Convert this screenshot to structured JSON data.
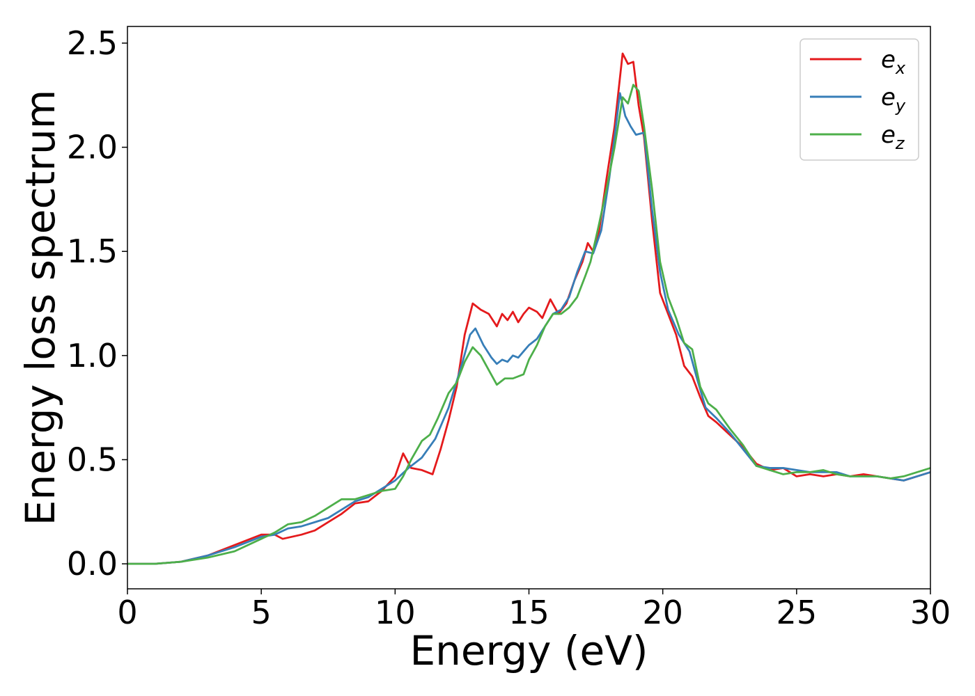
{
  "chart_data": {
    "type": "line",
    "title": "",
    "xlabel": "Energy (eV)",
    "ylabel": "Energy loss spectrum",
    "xlim": [
      0,
      30
    ],
    "ylim": [
      -0.12,
      2.58
    ],
    "xticks": [
      0,
      5,
      10,
      15,
      20,
      25,
      30
    ],
    "xtick_labels": [
      "0",
      "5",
      "10",
      "15",
      "20",
      "25",
      "30"
    ],
    "yticks": [
      0.0,
      0.5,
      1.0,
      1.5,
      2.0,
      2.5
    ],
    "ytick_labels": [
      "0.0",
      "0.5",
      "1.0",
      "1.5",
      "2.0",
      "2.5"
    ],
    "grid": false,
    "legend_position": "top-right",
    "series": [
      {
        "name": "e_x",
        "label_base": "e",
        "label_sub": "x",
        "color": "#e41a1c",
        "points": [
          [
            0,
            0.0
          ],
          [
            1,
            0.0
          ],
          [
            2,
            0.01
          ],
          [
            3,
            0.04
          ],
          [
            4,
            0.09
          ],
          [
            5,
            0.14
          ],
          [
            5.5,
            0.14
          ],
          [
            5.8,
            0.12
          ],
          [
            6.5,
            0.14
          ],
          [
            7,
            0.16
          ],
          [
            7.5,
            0.2
          ],
          [
            8,
            0.24
          ],
          [
            8.5,
            0.29
          ],
          [
            9,
            0.3
          ],
          [
            9.5,
            0.35
          ],
          [
            10,
            0.42
          ],
          [
            10.3,
            0.53
          ],
          [
            10.6,
            0.46
          ],
          [
            11,
            0.45
          ],
          [
            11.4,
            0.43
          ],
          [
            11.7,
            0.55
          ],
          [
            12,
            0.69
          ],
          [
            12.3,
            0.85
          ],
          [
            12.6,
            1.1
          ],
          [
            12.9,
            1.25
          ],
          [
            13.2,
            1.22
          ],
          [
            13.5,
            1.2
          ],
          [
            13.8,
            1.14
          ],
          [
            14,
            1.2
          ],
          [
            14.2,
            1.17
          ],
          [
            14.4,
            1.21
          ],
          [
            14.6,
            1.16
          ],
          [
            14.8,
            1.2
          ],
          [
            15,
            1.23
          ],
          [
            15.3,
            1.21
          ],
          [
            15.5,
            1.18
          ],
          [
            15.8,
            1.27
          ],
          [
            16.1,
            1.2
          ],
          [
            16.4,
            1.25
          ],
          [
            16.7,
            1.36
          ],
          [
            17,
            1.45
          ],
          [
            17.2,
            1.54
          ],
          [
            17.4,
            1.5
          ],
          [
            17.6,
            1.58
          ],
          [
            17.9,
            1.85
          ],
          [
            18.2,
            2.1
          ],
          [
            18.5,
            2.45
          ],
          [
            18.7,
            2.4
          ],
          [
            18.9,
            2.41
          ],
          [
            19.1,
            2.2
          ],
          [
            19.3,
            2.05
          ],
          [
            19.6,
            1.65
          ],
          [
            19.9,
            1.3
          ],
          [
            20.2,
            1.2
          ],
          [
            20.5,
            1.1
          ],
          [
            20.8,
            0.95
          ],
          [
            21.1,
            0.9
          ],
          [
            21.4,
            0.8
          ],
          [
            21.7,
            0.71
          ],
          [
            22,
            0.68
          ],
          [
            22.5,
            0.62
          ],
          [
            23,
            0.56
          ],
          [
            23.5,
            0.48
          ],
          [
            24,
            0.45
          ],
          [
            24.5,
            0.46
          ],
          [
            25,
            0.42
          ],
          [
            25.5,
            0.43
          ],
          [
            26,
            0.42
          ],
          [
            26.5,
            0.43
          ],
          [
            27,
            0.42
          ],
          [
            27.5,
            0.43
          ],
          [
            28,
            0.42
          ],
          [
            28.5,
            0.41
          ],
          [
            29,
            0.4
          ],
          [
            29.5,
            0.42
          ],
          [
            30,
            0.44
          ]
        ]
      },
      {
        "name": "e_y",
        "label_base": "e",
        "label_sub": "y",
        "color": "#377eb8",
        "points": [
          [
            0,
            0.0
          ],
          [
            1,
            0.0
          ],
          [
            2,
            0.01
          ],
          [
            3,
            0.04
          ],
          [
            4,
            0.08
          ],
          [
            5,
            0.13
          ],
          [
            5.5,
            0.14
          ],
          [
            6,
            0.17
          ],
          [
            6.5,
            0.18
          ],
          [
            7,
            0.2
          ],
          [
            7.5,
            0.22
          ],
          [
            8,
            0.26
          ],
          [
            8.5,
            0.3
          ],
          [
            9,
            0.32
          ],
          [
            9.5,
            0.36
          ],
          [
            10,
            0.4
          ],
          [
            10.5,
            0.46
          ],
          [
            11,
            0.51
          ],
          [
            11.5,
            0.6
          ],
          [
            12,
            0.75
          ],
          [
            12.5,
            0.96
          ],
          [
            12.8,
            1.1
          ],
          [
            13,
            1.13
          ],
          [
            13.3,
            1.05
          ],
          [
            13.6,
            0.99
          ],
          [
            13.8,
            0.96
          ],
          [
            14,
            0.98
          ],
          [
            14.2,
            0.97
          ],
          [
            14.4,
            1.0
          ],
          [
            14.6,
            0.99
          ],
          [
            14.8,
            1.02
          ],
          [
            15,
            1.05
          ],
          [
            15.3,
            1.08
          ],
          [
            15.6,
            1.14
          ],
          [
            15.9,
            1.2
          ],
          [
            16.2,
            1.22
          ],
          [
            16.5,
            1.28
          ],
          [
            16.8,
            1.4
          ],
          [
            17.1,
            1.5
          ],
          [
            17.4,
            1.49
          ],
          [
            17.7,
            1.6
          ],
          [
            18,
            1.85
          ],
          [
            18.2,
            2.05
          ],
          [
            18.4,
            2.26
          ],
          [
            18.6,
            2.15
          ],
          [
            18.8,
            2.1
          ],
          [
            19,
            2.06
          ],
          [
            19.3,
            2.07
          ],
          [
            19.6,
            1.7
          ],
          [
            19.9,
            1.4
          ],
          [
            20.2,
            1.22
          ],
          [
            20.6,
            1.1
          ],
          [
            21,
            1.02
          ],
          [
            21.3,
            0.88
          ],
          [
            21.6,
            0.75
          ],
          [
            22,
            0.7
          ],
          [
            22.5,
            0.63
          ],
          [
            23,
            0.55
          ],
          [
            23.5,
            0.47
          ],
          [
            24,
            0.46
          ],
          [
            24.5,
            0.46
          ],
          [
            25,
            0.45
          ],
          [
            25.5,
            0.44
          ],
          [
            26,
            0.44
          ],
          [
            26.5,
            0.44
          ],
          [
            27,
            0.42
          ],
          [
            27.5,
            0.42
          ],
          [
            28,
            0.42
          ],
          [
            28.5,
            0.41
          ],
          [
            29,
            0.4
          ],
          [
            29.5,
            0.42
          ],
          [
            30,
            0.44
          ]
        ]
      },
      {
        "name": "e_z",
        "label_base": "e",
        "label_sub": "z",
        "color": "#4daf4a",
        "points": [
          [
            0,
            0.0
          ],
          [
            1,
            0.0
          ],
          [
            2,
            0.01
          ],
          [
            3,
            0.03
          ],
          [
            4,
            0.06
          ],
          [
            5,
            0.12
          ],
          [
            5.5,
            0.15
          ],
          [
            6,
            0.19
          ],
          [
            6.5,
            0.2
          ],
          [
            7,
            0.23
          ],
          [
            7.5,
            0.27
          ],
          [
            8,
            0.31
          ],
          [
            8.5,
            0.31
          ],
          [
            9,
            0.33
          ],
          [
            9.5,
            0.35
          ],
          [
            10,
            0.36
          ],
          [
            10.3,
            0.42
          ],
          [
            10.6,
            0.5
          ],
          [
            11,
            0.59
          ],
          [
            11.3,
            0.62
          ],
          [
            11.6,
            0.7
          ],
          [
            12,
            0.82
          ],
          [
            12.3,
            0.87
          ],
          [
            12.6,
            0.97
          ],
          [
            12.9,
            1.04
          ],
          [
            13.2,
            1.0
          ],
          [
            13.5,
            0.93
          ],
          [
            13.8,
            0.86
          ],
          [
            14.1,
            0.89
          ],
          [
            14.4,
            0.89
          ],
          [
            14.8,
            0.91
          ],
          [
            15,
            0.98
          ],
          [
            15.3,
            1.05
          ],
          [
            15.6,
            1.14
          ],
          [
            15.9,
            1.2
          ],
          [
            16.2,
            1.2
          ],
          [
            16.5,
            1.23
          ],
          [
            16.8,
            1.28
          ],
          [
            17.1,
            1.38
          ],
          [
            17.3,
            1.45
          ],
          [
            17.6,
            1.62
          ],
          [
            17.9,
            1.8
          ],
          [
            18.2,
            2.0
          ],
          [
            18.5,
            2.24
          ],
          [
            18.7,
            2.21
          ],
          [
            18.9,
            2.3
          ],
          [
            19.1,
            2.27
          ],
          [
            19.3,
            2.1
          ],
          [
            19.6,
            1.8
          ],
          [
            19.9,
            1.45
          ],
          [
            20.2,
            1.28
          ],
          [
            20.5,
            1.18
          ],
          [
            20.8,
            1.06
          ],
          [
            21.1,
            1.03
          ],
          [
            21.4,
            0.85
          ],
          [
            21.7,
            0.77
          ],
          [
            22,
            0.74
          ],
          [
            22.5,
            0.65
          ],
          [
            23,
            0.57
          ],
          [
            23.5,
            0.47
          ],
          [
            24,
            0.45
          ],
          [
            24.5,
            0.43
          ],
          [
            25,
            0.44
          ],
          [
            25.5,
            0.44
          ],
          [
            26,
            0.45
          ],
          [
            26.5,
            0.43
          ],
          [
            27,
            0.42
          ],
          [
            27.5,
            0.42
          ],
          [
            28,
            0.42
          ],
          [
            28.5,
            0.41
          ],
          [
            29,
            0.42
          ],
          [
            29.5,
            0.44
          ],
          [
            30,
            0.46
          ]
        ]
      }
    ]
  }
}
